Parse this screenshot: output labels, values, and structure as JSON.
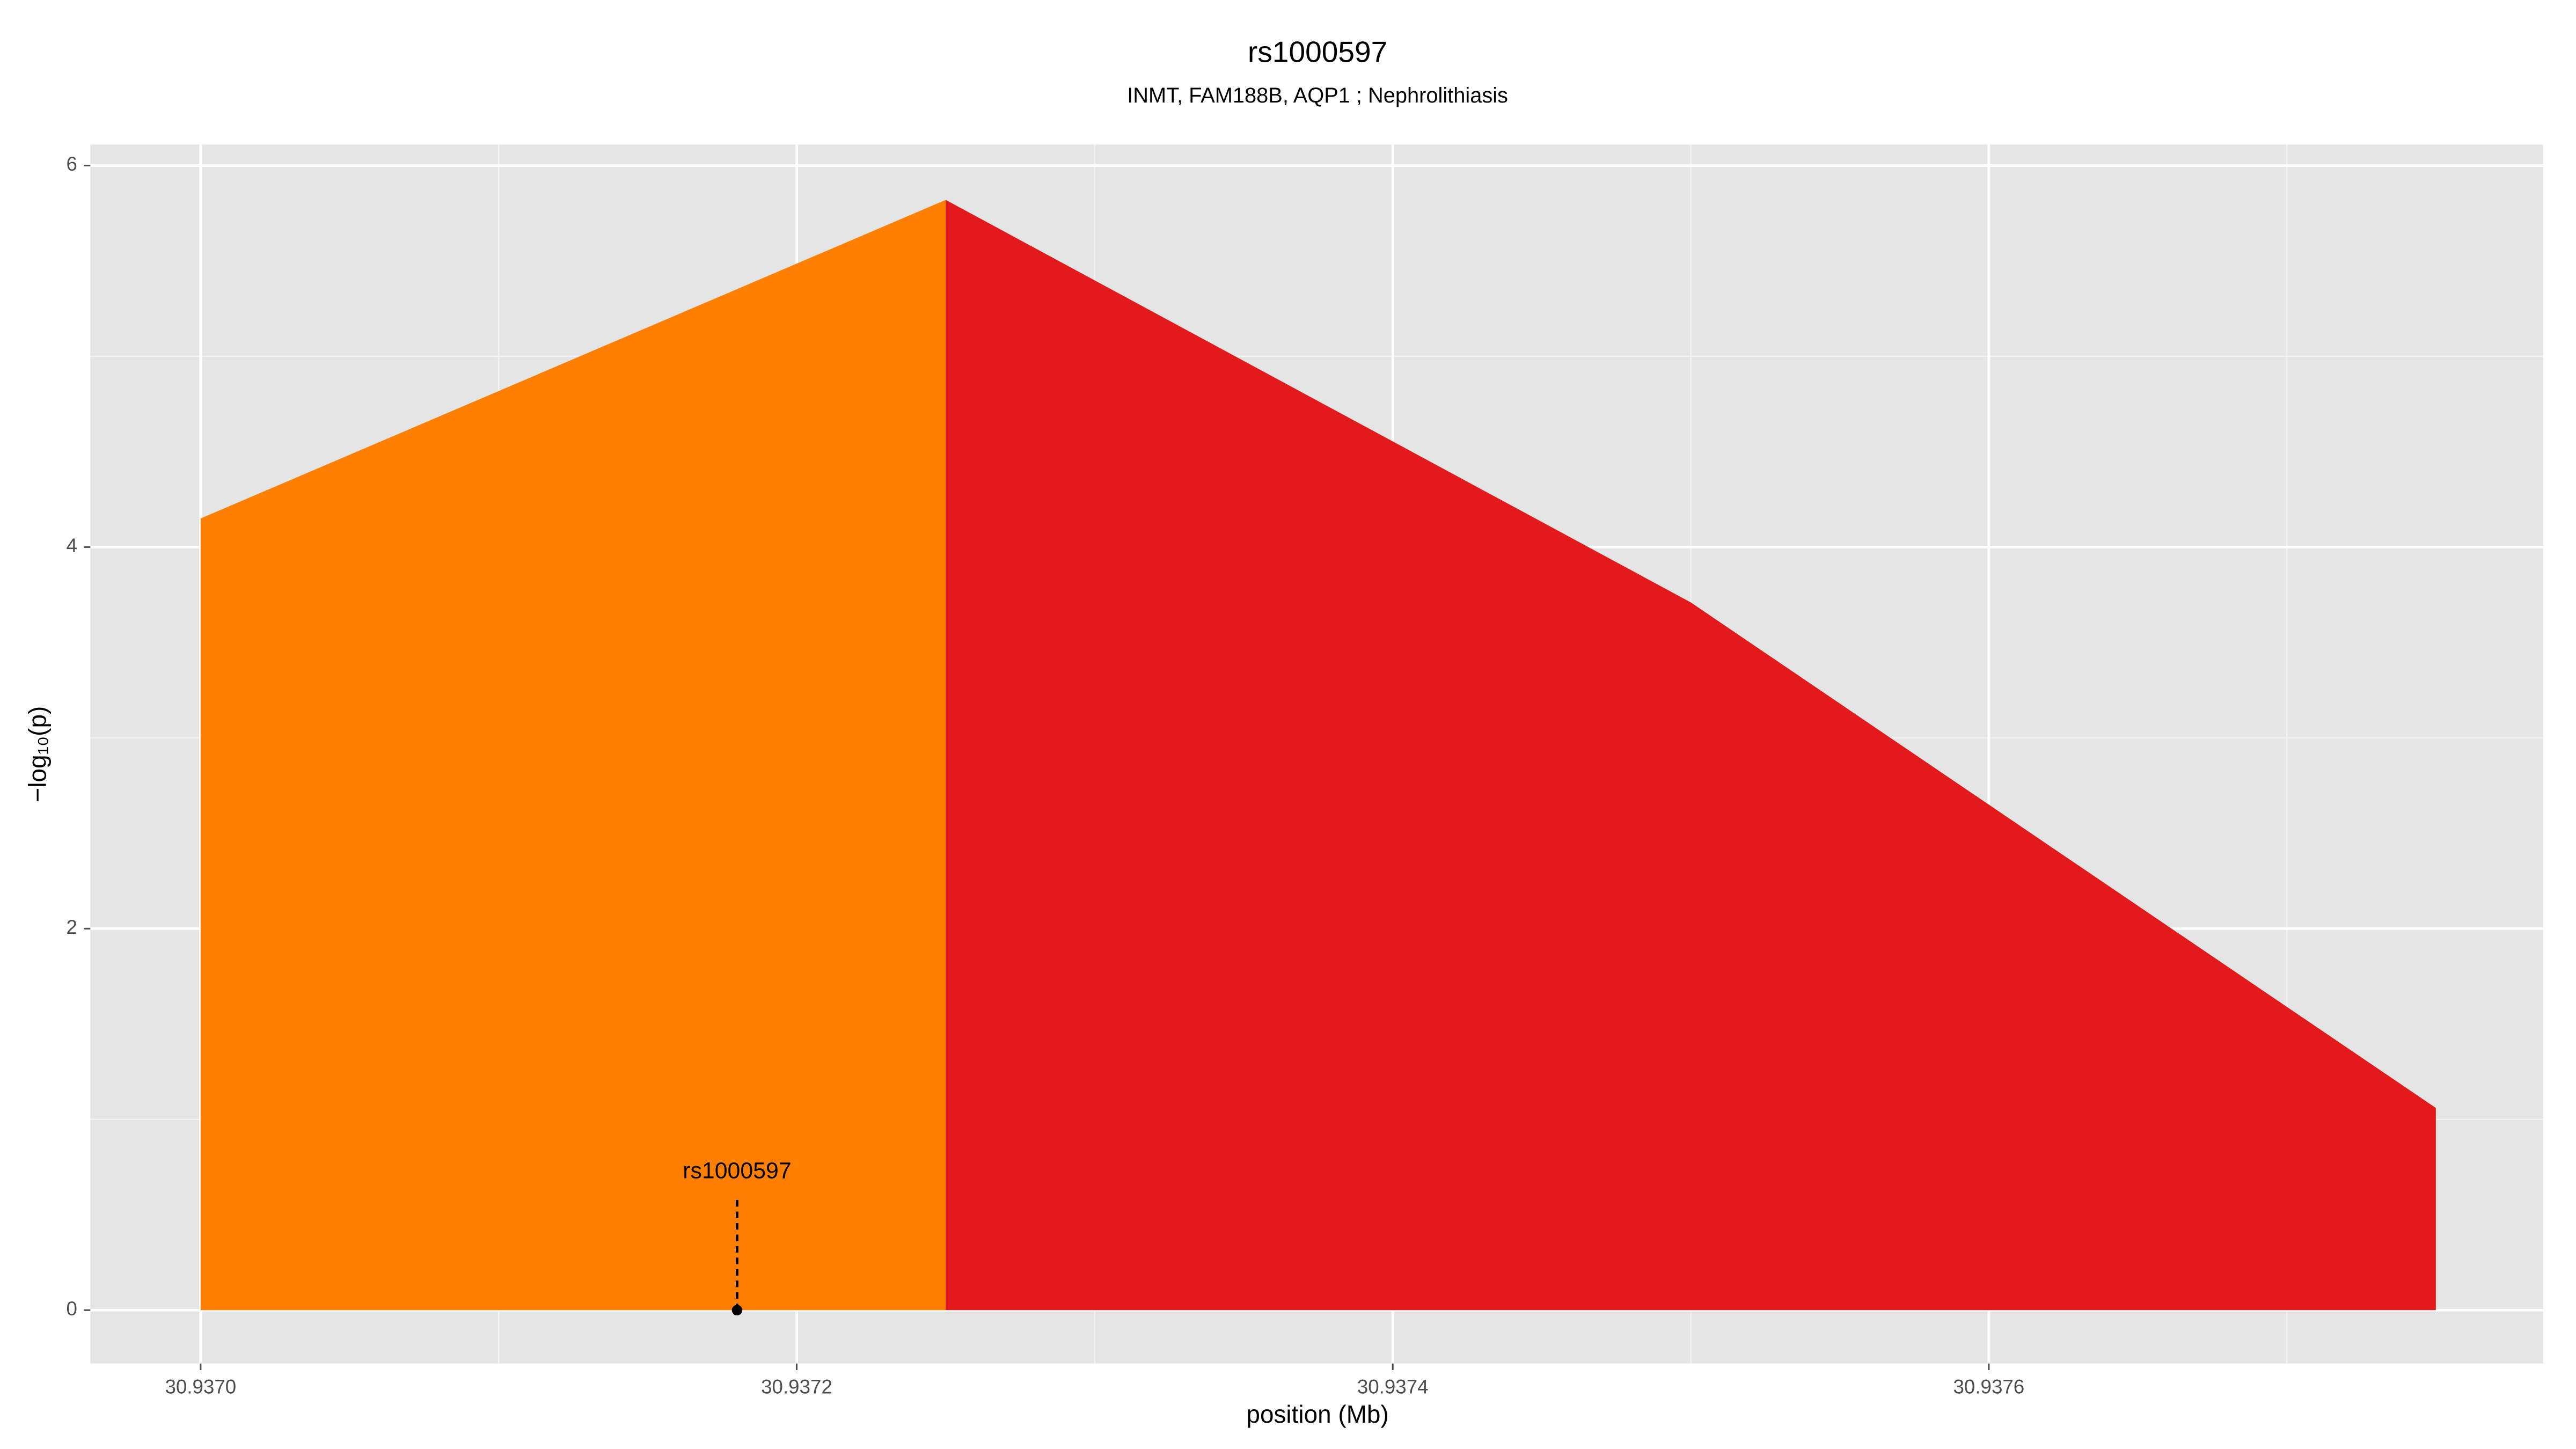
{
  "chart_data": {
    "type": "area",
    "title": "rs1000597",
    "subtitle": "INMT, FAM188B, AQP1 ; Nephrolithiasis",
    "xlabel": "position (Mb)",
    "ylabel": "−log₁₀(p)",
    "series": [
      {
        "color": "#ff7f00",
        "x": [
          30.937,
          30.93725
        ],
        "values": [
          4.15,
          5.82
        ]
      },
      {
        "color": "#e31a1c",
        "x": [
          30.93725,
          30.9375,
          30.93775
        ],
        "values": [
          5.82,
          3.71,
          1.06
        ]
      }
    ],
    "annotations": [
      {
        "text": "rs1000597",
        "x": 30.93718,
        "y": 0
      }
    ],
    "xlim": [
      30.936963,
      30.937786
    ],
    "ylim": [
      -0.28,
      6.11
    ],
    "xticks": [
      {
        "value": 30.937,
        "label": "30.9370"
      },
      30.9372,
      30.9374,
      30.9376
    ],
    "yticks": [
      0,
      2,
      4,
      6
    ],
    "grid": true
  }
}
